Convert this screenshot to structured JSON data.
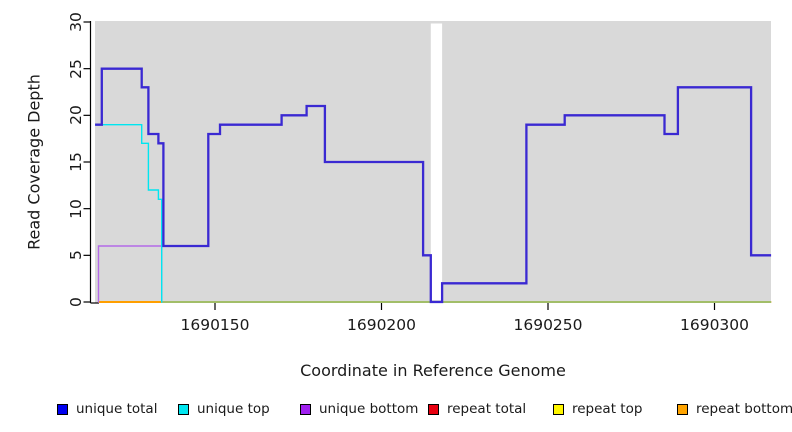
{
  "chart_data": {
    "type": "step-line",
    "title": "",
    "xlabel": "Coordinate in Reference Genome",
    "ylabel": "Read Coverage Depth",
    "xlim": [
      1690114,
      1690317
    ],
    "ylim": [
      0,
      30
    ],
    "xticks": [
      "1690150",
      "1690200",
      "1690250",
      "1690300"
    ],
    "xtick_values": [
      1690150,
      1690200,
      1690250,
      1690300
    ],
    "yticks": [
      "0",
      "5",
      "10",
      "15",
      "20",
      "25",
      "30"
    ],
    "ytick_values": [
      0,
      5,
      10,
      15,
      20,
      25,
      30
    ],
    "grid": false,
    "panel_bg": "#d9d9d9",
    "no_data_gap": [
      1690214.8,
      1690218.2
    ],
    "legend_position": "bottom",
    "legend": [
      {
        "label": "unique total",
        "color": "#0000f0"
      },
      {
        "label": "unique top",
        "color": "#00e6f0"
      },
      {
        "label": "unique bottom",
        "color": "#a020f0"
      },
      {
        "label": "repeat total",
        "color": "#e80010"
      },
      {
        "label": "repeat top",
        "color": "#fff600"
      },
      {
        "label": "repeat bottom",
        "color": "#ffa400"
      }
    ],
    "series": [
      {
        "name": "repeat total",
        "color": "#e80010",
        "width": 2,
        "steps": [
          [
            1690115,
            1690317,
            0
          ]
        ]
      },
      {
        "name": "repeat top",
        "color": "#fff600",
        "width": 2,
        "steps": [
          [
            1690115,
            1690317,
            0
          ]
        ]
      },
      {
        "name": "repeat bottom",
        "color": "#ff9f00",
        "width": 2,
        "steps": [
          [
            1690115,
            1690317,
            0
          ]
        ]
      },
      {
        "name": "zero baseline",
        "color": "#84c98c",
        "width": 1.6,
        "in_legend": false,
        "steps": [
          [
            1690134,
            1690317,
            0
          ]
        ]
      },
      {
        "name": "unique bottom",
        "color": "#b46ae8",
        "width": 1.4,
        "steps": [
          [
            1690114.9,
            1690115,
            0
          ],
          [
            1690115,
            1690134,
            6
          ],
          [
            1690134,
            1690134.2,
            0
          ]
        ]
      },
      {
        "name": "unique top",
        "color": "#00e6f0",
        "width": 1.4,
        "steps": [
          [
            1690114,
            1690128,
            19
          ],
          [
            1690128,
            1690130,
            17
          ],
          [
            1690130,
            1690133,
            12
          ],
          [
            1690133,
            1690134,
            11
          ],
          [
            1690134,
            1690134.2,
            0
          ]
        ]
      },
      {
        "name": "unique total",
        "color": "#3a29d2",
        "width": 2.3,
        "steps": [
          [
            1690114,
            1690116,
            19
          ],
          [
            1690116,
            1690128,
            25
          ],
          [
            1690128,
            1690130,
            23
          ],
          [
            1690130,
            1690133,
            18
          ],
          [
            1690133,
            1690134.5,
            17
          ],
          [
            1690134.5,
            1690148,
            6
          ],
          [
            1690148,
            1690151.5,
            18
          ],
          [
            1690151.5,
            1690170,
            19
          ],
          [
            1690170,
            1690177.5,
            20
          ],
          [
            1690177.5,
            1690183,
            21
          ],
          [
            1690183,
            1690212.5,
            15
          ],
          [
            1690212.5,
            1690214.8,
            5
          ],
          [
            1690214.8,
            1690218.2,
            0
          ],
          [
            1690218.2,
            1690243.5,
            2
          ],
          [
            1690243.5,
            1690255,
            19
          ],
          [
            1690255,
            1690285,
            20
          ],
          [
            1690285,
            1690289,
            18
          ],
          [
            1690289,
            1690311,
            23
          ],
          [
            1690311,
            1690317,
            5
          ]
        ]
      }
    ]
  }
}
